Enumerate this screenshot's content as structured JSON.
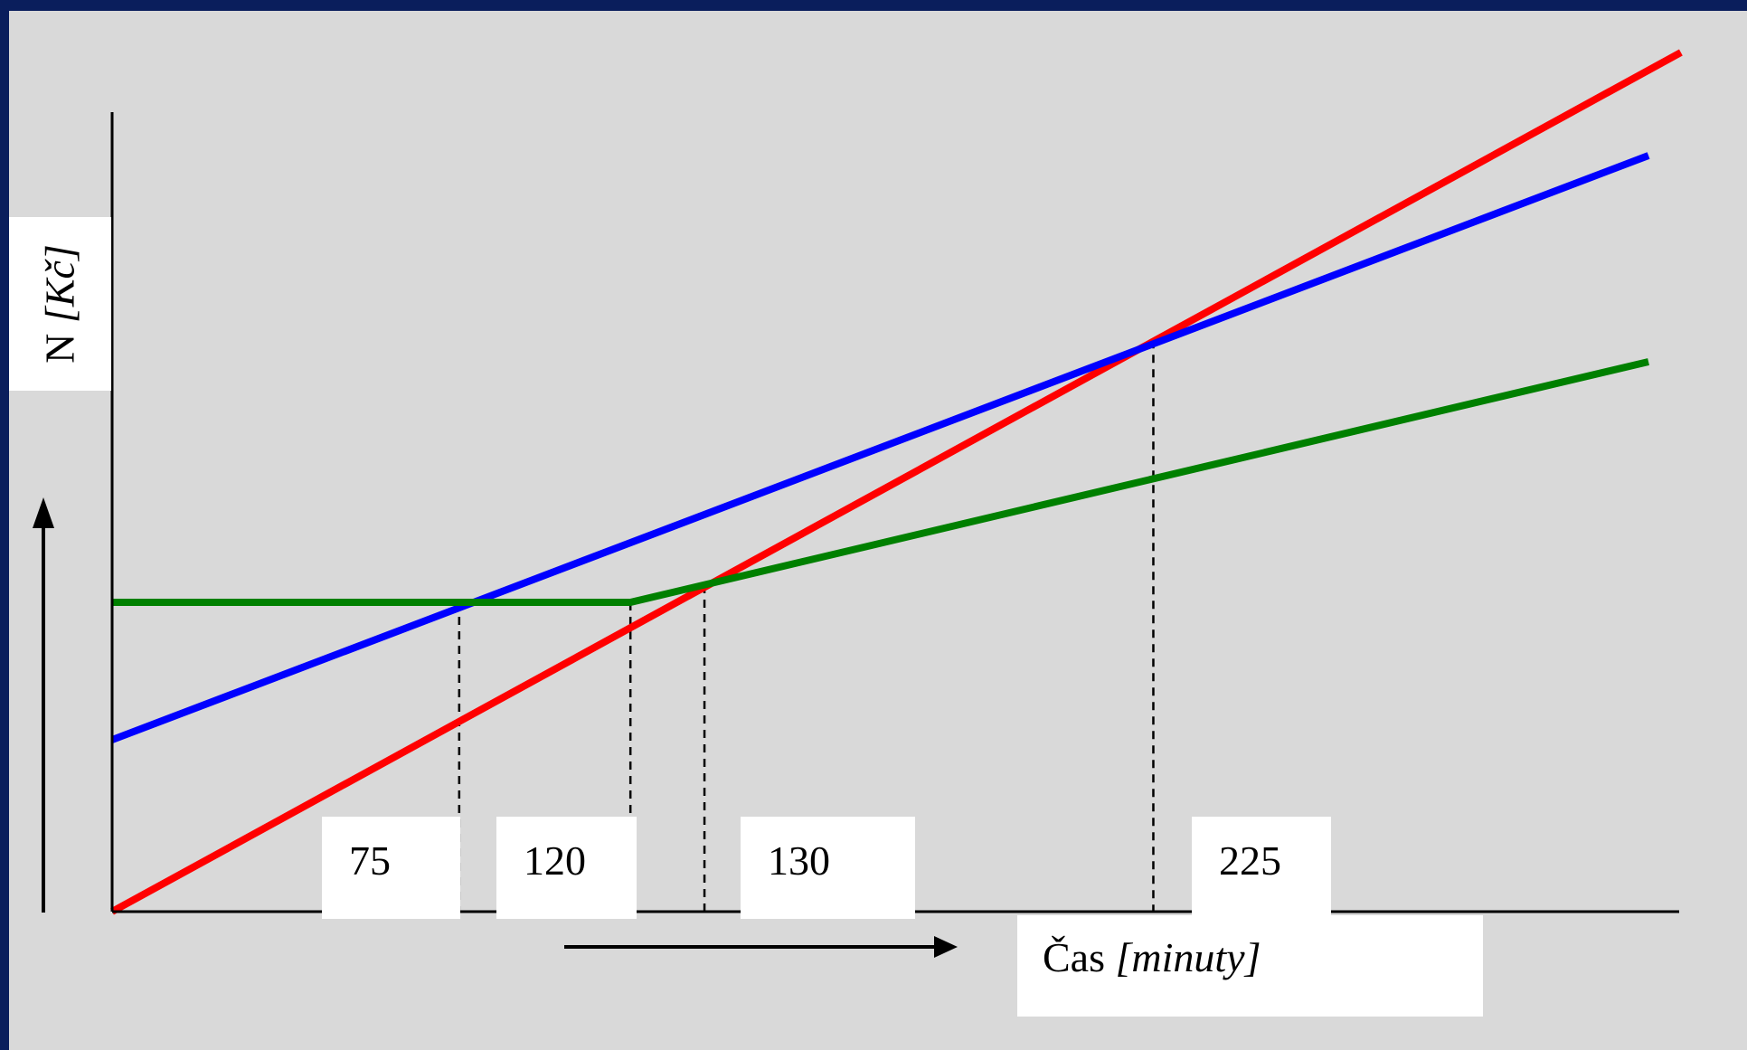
{
  "chart_data": {
    "type": "line",
    "xlabel_main": "Čas",
    "xlabel_unit": "[minuty]",
    "ylabel_main": "N",
    "ylabel_unit": "[Kč]",
    "xlim": [
      0,
      340
    ],
    "ylim": [
      0,
      200
    ],
    "x_ticks": [
      {
        "value": 75,
        "label": "75"
      },
      {
        "value": 120,
        "label": "120"
      },
      {
        "value": 130,
        "label": "130"
      },
      {
        "value": 225,
        "label": "225"
      }
    ],
    "series": [
      {
        "color": "#ff0000",
        "x": [
          0,
          339
        ],
        "y": [
          0,
          200
        ]
      },
      {
        "color": "#0000ff",
        "x": [
          0,
          332
        ],
        "y": [
          40,
          176
        ]
      },
      {
        "color": "#008000",
        "x": [
          0,
          112,
          332
        ],
        "y": [
          72,
          72,
          128
        ]
      }
    ],
    "guide_lines": [
      {
        "x": 75,
        "y": 72
      },
      {
        "x": 112,
        "y": 72
      },
      {
        "x": 128,
        "y": 76
      },
      {
        "x": 225,
        "y": 133
      }
    ]
  }
}
